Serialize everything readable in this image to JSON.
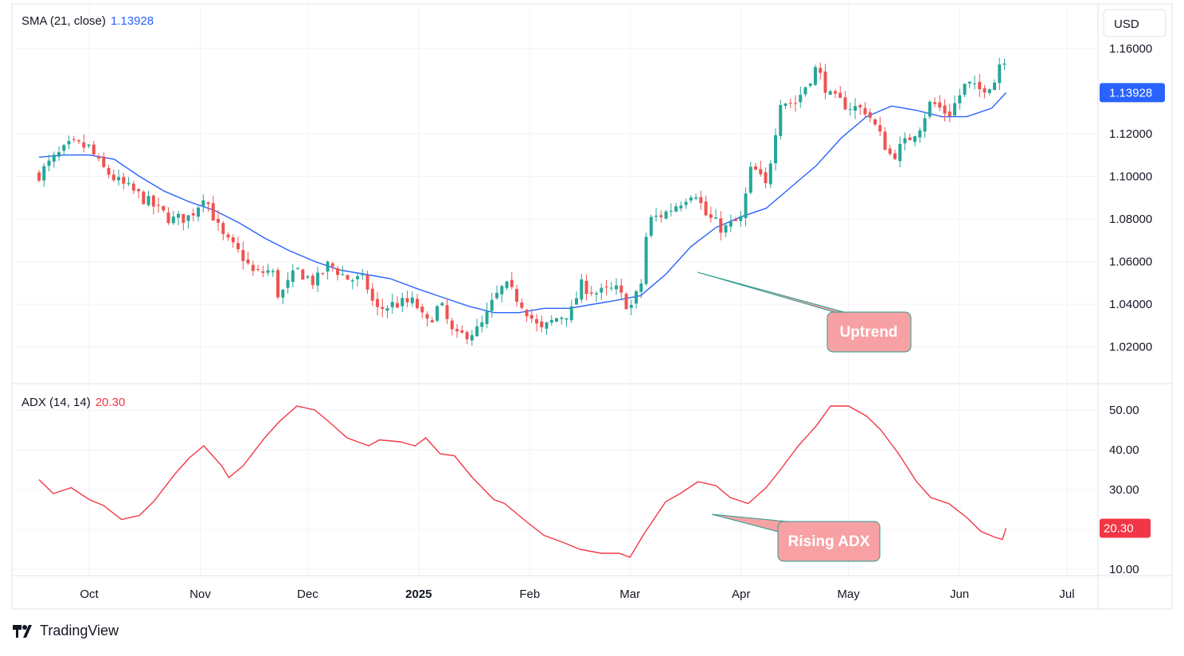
{
  "colors": {
    "up": "#26a69a",
    "down": "#ef5350",
    "sma_line": "#2962ff",
    "adx_line": "#f23645",
    "grid": "#f0f3fa",
    "border": "#e0e3eb",
    "sma_badge": "#2962ff",
    "adx_badge": "#f23645",
    "callout_fill": "#f7a1a4",
    "callout_stroke": "#2a9d8f"
  },
  "currency_label": "USD",
  "brand": {
    "name": "TradingView",
    "logo_icon": "tradingview-logo-icon"
  },
  "indicators": {
    "sma": {
      "label": "SMA (21, close)",
      "value": "1.13928"
    },
    "adx": {
      "label": "ADX (14, 14)",
      "value": "20.30"
    }
  },
  "annotations": {
    "uptrend": "Uptrend",
    "rising_adx": "Rising ADX"
  },
  "chart_data": [
    {
      "type": "candlestick",
      "title": "",
      "x_ticks": [
        "Oct",
        "Nov",
        "Dec",
        "2025",
        "Feb",
        "Mar",
        "Apr",
        "May",
        "Jun",
        "Jul"
      ],
      "y_ticks": [
        "1.16000",
        "1.12000",
        "1.10000",
        "1.08000",
        "1.06000",
        "1.04000",
        "1.02000"
      ],
      "ylim": [
        1.0,
        1.178
      ],
      "grid": true,
      "current_value_label": "1.13928",
      "close_path": [
        [
          "2024-09-16",
          1.101
        ],
        [
          "2024-09-20",
          1.108
        ],
        [
          "2024-09-25",
          1.115
        ],
        [
          "2024-09-30",
          1.1135
        ],
        [
          "2024-10-03",
          1.105
        ],
        [
          "2024-10-08",
          1.0975
        ],
        [
          "2024-10-14",
          1.091
        ],
        [
          "2024-10-18",
          1.086
        ],
        [
          "2024-10-23",
          1.0795
        ],
        [
          "2024-10-28",
          1.081
        ],
        [
          "2024-10-31",
          1.088
        ],
        [
          "2024-11-01",
          1.092
        ],
        [
          "2024-11-06",
          1.072
        ],
        [
          "2024-11-12",
          1.062
        ],
        [
          "2024-11-15",
          1.054
        ],
        [
          "2024-11-20",
          1.056
        ],
        [
          "2024-11-22",
          1.043
        ],
        [
          "2024-11-27",
          1.056
        ],
        [
          "2024-12-02",
          1.05
        ],
        [
          "2024-12-06",
          1.059
        ],
        [
          "2024-12-11",
          1.052
        ],
        [
          "2024-12-16",
          1.051
        ],
        [
          "2024-12-19",
          1.037
        ],
        [
          "2024-12-24",
          1.04
        ],
        [
          "2024-12-30",
          1.041
        ],
        [
          "2025-01-02",
          1.03
        ],
        [
          "2025-01-06",
          1.04
        ],
        [
          "2025-01-10",
          1.024
        ],
        [
          "2025-01-13",
          1.026
        ],
        [
          "2025-01-17",
          1.028
        ],
        [
          "2025-01-21",
          1.042
        ],
        [
          "2025-01-24",
          1.049
        ],
        [
          "2025-01-29",
          1.04
        ],
        [
          "2025-02-03",
          1.027
        ],
        [
          "2025-02-07",
          1.033
        ],
        [
          "2025-02-12",
          1.037
        ],
        [
          "2025-02-14",
          1.049
        ],
        [
          "2025-02-19",
          1.045
        ],
        [
          "2025-02-24",
          1.047
        ],
        [
          "2025-02-28",
          1.038
        ],
        [
          "2025-03-03",
          1.048
        ],
        [
          "2025-03-05",
          1.079
        ],
        [
          "2025-03-10",
          1.083
        ],
        [
          "2025-03-14",
          1.088
        ],
        [
          "2025-03-18",
          1.094
        ],
        [
          "2025-03-21",
          1.082
        ],
        [
          "2025-03-26",
          1.075
        ],
        [
          "2025-03-31",
          1.08
        ],
        [
          "2025-04-03",
          1.105
        ],
        [
          "2025-04-07",
          1.095
        ],
        [
          "2025-04-11",
          1.136
        ],
        [
          "2025-04-15",
          1.134
        ],
        [
          "2025-04-21",
          1.151
        ],
        [
          "2025-04-25",
          1.137
        ],
        [
          "2025-04-30",
          1.133
        ],
        [
          "2025-05-05",
          1.131
        ],
        [
          "2025-05-12",
          1.109
        ],
        [
          "2025-05-16",
          1.116
        ],
        [
          "2025-05-20",
          1.124
        ],
        [
          "2025-05-23",
          1.135
        ],
        [
          "2025-05-28",
          1.129
        ],
        [
          "2025-06-02",
          1.144
        ],
        [
          "2025-06-05",
          1.14
        ],
        [
          "2025-06-10",
          1.145
        ],
        [
          "2025-06-12",
          1.159
        ],
        [
          "2025-06-13",
          1.153
        ]
      ],
      "sma_21": [
        [
          "2024-09-16",
          1.109
        ],
        [
          "2024-09-23",
          1.11
        ],
        [
          "2024-09-30",
          1.11
        ],
        [
          "2024-10-07",
          1.108
        ],
        [
          "2024-10-14",
          1.1
        ],
        [
          "2024-10-21",
          1.093
        ],
        [
          "2024-10-28",
          1.088
        ],
        [
          "2024-11-04",
          1.084
        ],
        [
          "2024-11-11",
          1.078
        ],
        [
          "2024-11-18",
          1.071
        ],
        [
          "2024-11-25",
          1.065
        ],
        [
          "2024-12-02",
          1.06
        ],
        [
          "2024-12-09",
          1.056
        ],
        [
          "2024-12-16",
          1.054
        ],
        [
          "2024-12-23",
          1.052
        ],
        [
          "2024-12-31",
          1.047
        ],
        [
          "2025-01-07",
          1.043
        ],
        [
          "2025-01-14",
          1.039
        ],
        [
          "2025-01-21",
          1.036
        ],
        [
          "2025-01-28",
          1.036
        ],
        [
          "2025-02-04",
          1.038
        ],
        [
          "2025-02-11",
          1.038
        ],
        [
          "2025-02-18",
          1.04
        ],
        [
          "2025-02-25",
          1.042
        ],
        [
          "2025-03-03",
          1.044
        ],
        [
          "2025-03-10",
          1.054
        ],
        [
          "2025-03-17",
          1.067
        ],
        [
          "2025-03-24",
          1.076
        ],
        [
          "2025-03-31",
          1.081
        ],
        [
          "2025-04-07",
          1.085
        ],
        [
          "2025-04-14",
          1.095
        ],
        [
          "2025-04-21",
          1.105
        ],
        [
          "2025-04-28",
          1.118
        ],
        [
          "2025-05-05",
          1.128
        ],
        [
          "2025-05-12",
          1.133
        ],
        [
          "2025-05-19",
          1.131
        ],
        [
          "2025-05-26",
          1.128
        ],
        [
          "2025-06-02",
          1.128
        ],
        [
          "2025-06-09",
          1.132
        ],
        [
          "2025-06-13",
          1.1393
        ]
      ]
    },
    {
      "type": "line",
      "title": "",
      "x_ticks": [
        "Oct",
        "Nov",
        "Dec",
        "2025",
        "Feb",
        "Mar",
        "Apr",
        "May",
        "Jun",
        "Jul"
      ],
      "y_ticks": [
        "50.00",
        "40.00",
        "30.00",
        "10.00"
      ],
      "ylim": [
        8.0,
        54.0
      ],
      "grid": true,
      "current_value_label": "20.30",
      "series": [
        {
          "values": [
            [
              "2024-09-16",
              32.5
            ],
            [
              "2024-09-20",
              29.0
            ],
            [
              "2024-09-25",
              30.5
            ],
            [
              "2024-09-30",
              27.5
            ],
            [
              "2024-10-04",
              26.0
            ],
            [
              "2024-10-09",
              22.5
            ],
            [
              "2024-10-14",
              23.5
            ],
            [
              "2024-10-18",
              27.0
            ],
            [
              "2024-10-24",
              34.0
            ],
            [
              "2024-10-28",
              38.0
            ],
            [
              "2024-11-01",
              41.0
            ],
            [
              "2024-11-06",
              36.0
            ],
            [
              "2024-11-08",
              33.0
            ],
            [
              "2024-11-12",
              36.0
            ],
            [
              "2024-11-18",
              43.0
            ],
            [
              "2024-11-22",
              47.0
            ],
            [
              "2024-11-27",
              51.0
            ],
            [
              "2024-12-02",
              50.0
            ],
            [
              "2024-12-06",
              47.0
            ],
            [
              "2024-12-11",
              43.0
            ],
            [
              "2024-12-17",
              41.0
            ],
            [
              "2024-12-20",
              42.5
            ],
            [
              "2024-12-26",
              42.0
            ],
            [
              "2024-12-30",
              41.0
            ],
            [
              "2025-01-02",
              43.0
            ],
            [
              "2025-01-06",
              39.0
            ],
            [
              "2025-01-10",
              38.5
            ],
            [
              "2025-01-15",
              33.0
            ],
            [
              "2025-01-21",
              27.5
            ],
            [
              "2025-01-24",
              26.5
            ],
            [
              "2025-01-30",
              22.0
            ],
            [
              "2025-02-04",
              18.5
            ],
            [
              "2025-02-10",
              16.5
            ],
            [
              "2025-02-14",
              15.0
            ],
            [
              "2025-02-20",
              14.0
            ],
            [
              "2025-02-25",
              14.0
            ],
            [
              "2025-02-28",
              13.0
            ],
            [
              "2025-03-04",
              19.0
            ],
            [
              "2025-03-10",
              27.0
            ],
            [
              "2025-03-14",
              29.0
            ],
            [
              "2025-03-19",
              32.0
            ],
            [
              "2025-03-24",
              31.0
            ],
            [
              "2025-03-28",
              28.0
            ],
            [
              "2025-04-02",
              26.5
            ],
            [
              "2025-04-07",
              30.5
            ],
            [
              "2025-04-11",
              35.0
            ],
            [
              "2025-04-16",
              41.0
            ],
            [
              "2025-04-21",
              46.0
            ],
            [
              "2025-04-25",
              51.0
            ],
            [
              "2025-04-30",
              51.0
            ],
            [
              "2025-05-05",
              48.5
            ],
            [
              "2025-05-09",
              45.0
            ],
            [
              "2025-05-14",
              39.0
            ],
            [
              "2025-05-19",
              32.0
            ],
            [
              "2025-05-23",
              28.0
            ],
            [
              "2025-05-28",
              26.5
            ],
            [
              "2025-06-02",
              23.0
            ],
            [
              "2025-06-06",
              19.5
            ],
            [
              "2025-06-10",
              18.0
            ],
            [
              "2025-06-12",
              17.5
            ],
            [
              "2025-06-13",
              20.3
            ]
          ]
        }
      ]
    }
  ]
}
